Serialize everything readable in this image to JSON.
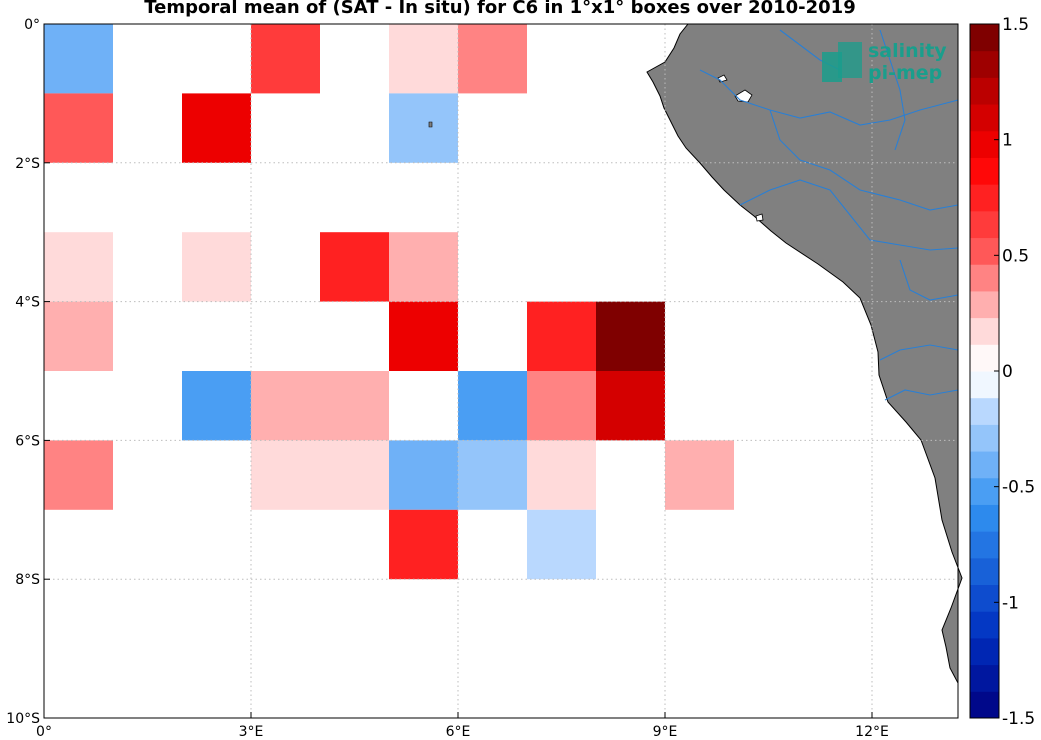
{
  "title": "Temporal mean of (SAT - In situ) for C6 in 1°x1° boxes over 2010-2019",
  "logo": {
    "line1": "salinity",
    "line2": "pi-mep"
  },
  "axes": {
    "lat_ticks": [
      "0°",
      "2°S",
      "4°S",
      "6°S",
      "8°S",
      "10°S"
    ],
    "lon_ticks": [
      "0°",
      "3°E",
      "6°E",
      "9°E",
      "12°E"
    ]
  },
  "colorbar": {
    "labels": [
      "1.5",
      "1",
      "0.5",
      "0",
      "-0.5",
      "-1",
      "-1.5"
    ],
    "range": [
      -1.5,
      1.5
    ],
    "steps": 26
  },
  "colors": {
    "land": "#808080",
    "river": "#2a7fd4",
    "grid": "#bdbdbd"
  },
  "chart_data": {
    "type": "heatmap",
    "title": "Temporal mean of (SAT - In situ) for C6 in 1°x1° boxes over 2010-2019",
    "xlim": [
      0,
      13.3
    ],
    "ylim": [
      -10,
      0
    ],
    "value_range": [
      -1.5,
      1.5
    ],
    "cell_size_deg": 1,
    "cells": [
      {
        "lon": 0,
        "lat": 0,
        "value": -0.4
      },
      {
        "lon": 3,
        "lat": 0,
        "value": 0.6
      },
      {
        "lon": 5,
        "lat": 0,
        "value": 0.15
      },
      {
        "lon": 6,
        "lat": 0,
        "value": 0.4
      },
      {
        "lon": 0,
        "lat": -1,
        "value": 0.5
      },
      {
        "lon": 2,
        "lat": -1,
        "value": 0.95
      },
      {
        "lon": 5,
        "lat": -1,
        "value": -0.3
      },
      {
        "lon": 0,
        "lat": -3,
        "value": 0.15
      },
      {
        "lon": 2,
        "lat": -3,
        "value": 0.15
      },
      {
        "lon": 4,
        "lat": -3,
        "value": 0.8
      },
      {
        "lon": 5,
        "lat": -3,
        "value": 0.3
      },
      {
        "lon": 0,
        "lat": -4,
        "value": 0.25
      },
      {
        "lon": 5,
        "lat": -4,
        "value": 0.95
      },
      {
        "lon": 7,
        "lat": -4,
        "value": 0.8
      },
      {
        "lon": 8,
        "lat": -4,
        "value": 1.4
      },
      {
        "lon": 2,
        "lat": -5,
        "value": -0.55
      },
      {
        "lon": 3,
        "lat": -5,
        "value": 0.25
      },
      {
        "lon": 4,
        "lat": -5,
        "value": 0.25
      },
      {
        "lon": 6,
        "lat": -5,
        "value": -0.55
      },
      {
        "lon": 7,
        "lat": -5,
        "value": 0.4
      },
      {
        "lon": 8,
        "lat": -5,
        "value": 1.1
      },
      {
        "lon": 0,
        "lat": -6,
        "value": 0.4
      },
      {
        "lon": 3,
        "lat": -6,
        "value": 0.15
      },
      {
        "lon": 4,
        "lat": -6,
        "value": 0.15
      },
      {
        "lon": 5,
        "lat": -6,
        "value": -0.35
      },
      {
        "lon": 6,
        "lat": -6,
        "value": -0.3
      },
      {
        "lon": 7,
        "lat": -6,
        "value": 0.15
      },
      {
        "lon": 9,
        "lat": -6,
        "value": 0.25
      },
      {
        "lon": 5,
        "lat": -7,
        "value": 0.8
      },
      {
        "lon": 7,
        "lat": -7,
        "value": -0.2
      }
    ]
  }
}
